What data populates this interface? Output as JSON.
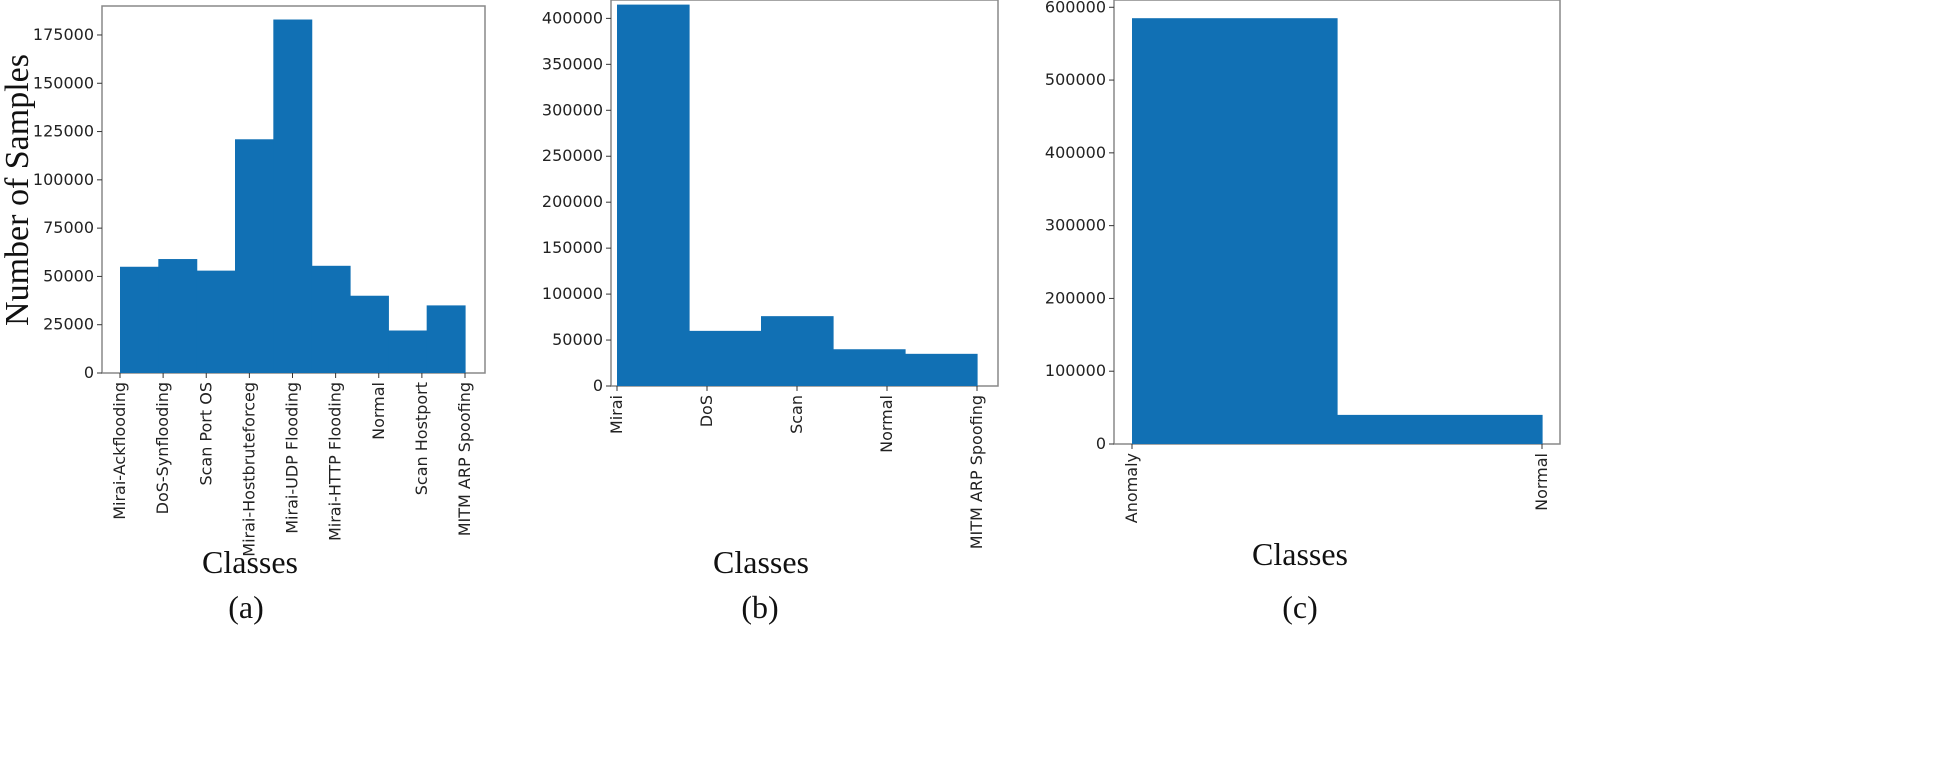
{
  "chart_data": [
    {
      "type": "bar",
      "caption": "(a)",
      "xlabel": "Classes",
      "ylabel": "Number of Samples",
      "ylim": [
        0,
        190000
      ],
      "yticks": [
        0,
        25000,
        50000,
        75000,
        100000,
        125000,
        150000,
        175000
      ],
      "categories": [
        "Mirai-Ackflooding",
        "DoS-Synflooding",
        "Scan Port OS",
        "Mirai-Hostbruteforceg",
        "Mirai-UDP Flooding",
        "Mirai-HTTP Flooding",
        "Normal",
        "Scan Hostport",
        "MITM ARP Spoofing"
      ],
      "values": [
        55000,
        59000,
        53000,
        121000,
        183000,
        55500,
        40000,
        22000,
        35000
      ],
      "color": "#1170b4",
      "grid": false
    },
    {
      "type": "bar",
      "caption": "(b)",
      "xlabel": "Classes",
      "ylabel": "",
      "ylim": [
        0,
        420000
      ],
      "yticks": [
        0,
        50000,
        100000,
        150000,
        200000,
        250000,
        300000,
        350000,
        400000
      ],
      "categories": [
        "Mirai",
        "DoS",
        "Scan",
        "Normal",
        "MITM ARP Spoofing"
      ],
      "values": [
        415000,
        60000,
        76000,
        40000,
        35000
      ],
      "color": "#1170b4",
      "grid": false
    },
    {
      "type": "bar",
      "caption": "(c)",
      "xlabel": "Classes",
      "ylabel": "",
      "ylim": [
        0,
        610000
      ],
      "yticks": [
        0,
        100000,
        200000,
        300000,
        400000,
        500000,
        600000
      ],
      "categories": [
        "Anomaly",
        "Normal"
      ],
      "values": [
        585000,
        40000
      ],
      "color": "#1170b4",
      "grid": false
    }
  ]
}
